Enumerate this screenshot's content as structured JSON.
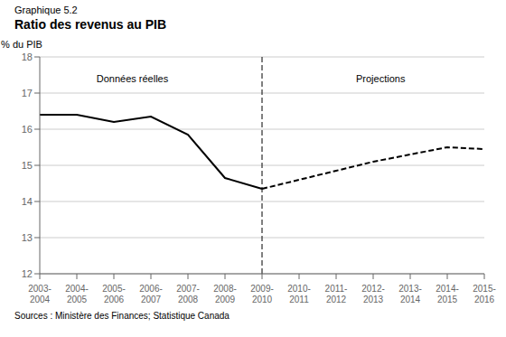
{
  "chart_data": {
    "type": "line",
    "subtitle": "Graphique 5.2",
    "title": "Ratio des revenus au PIB",
    "y_label": "% du PIB",
    "source": "Sources : Ministère des Finances; Statistique Canada",
    "categories": [
      "2003-\n2004",
      "2004-\n2005",
      "2005-\n2006",
      "2006-\n2007",
      "2007-\n2008",
      "2008-\n2009",
      "2009-\n2010",
      "2010-\n2011",
      "2011-\n2012",
      "2012-\n2013",
      "2013-\n2014",
      "2014-\n2015",
      "2015-\n2016"
    ],
    "series": [
      {
        "name": "Données réelles",
        "color": "#000000",
        "line_style": "solid",
        "values": [
          16.4,
          16.4,
          16.2,
          16.35,
          15.85,
          14.65,
          14.35,
          null,
          null,
          null,
          null,
          null,
          null
        ]
      },
      {
        "name": "Projections",
        "color": "#000000",
        "line_style": "dashed",
        "values": [
          null,
          null,
          null,
          null,
          null,
          null,
          14.35,
          14.6,
          14.85,
          15.1,
          15.3,
          15.5,
          15.45
        ]
      }
    ],
    "reference_line": {
      "x": 6,
      "line_style": "dashed",
      "color": "#000000"
    },
    "annotations": [
      {
        "text": "Données réelles",
        "x": 2.5,
        "y": 17.55
      },
      {
        "text": "Projections",
        "x": 9.2,
        "y": 17.55
      }
    ],
    "ylim": [
      12,
      18
    ],
    "yticks": [
      12,
      13,
      14,
      15,
      16,
      17,
      18
    ],
    "grid": "y",
    "legend": false
  }
}
